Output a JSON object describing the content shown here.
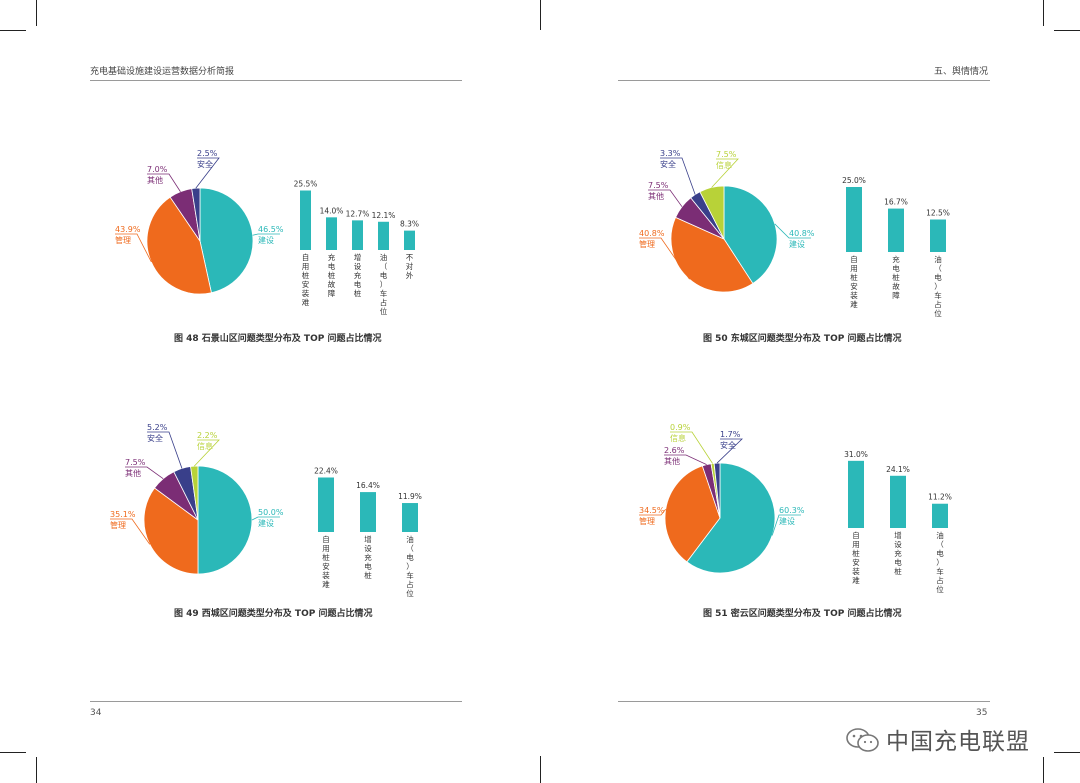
{
  "header": {
    "left_title": "充电基础设施建设运营数据分析简报",
    "right_title": "五、舆情情况"
  },
  "footer": {
    "left_page": "34",
    "right_page": "35"
  },
  "watermark": {
    "text": "中国充电联盟"
  },
  "colors": {
    "建设": "#2bb8b8",
    "管理": "#ef6a1d",
    "其他": "#7b2d75",
    "安全": "#393f8a",
    "信息": "#b8d238",
    "bar": "#2bb8b8"
  },
  "chart_data": [
    {
      "id": "fig48",
      "caption": "图 48  石景山区问题类型分布及 TOP 问题占比情况",
      "pie": {
        "type": "pie",
        "slices": [
          {
            "label": "建设",
            "value": 46.5,
            "value_label": "46.5%"
          },
          {
            "label": "管理",
            "value": 43.9,
            "value_label": "43.9%"
          },
          {
            "label": "其他",
            "value": 7.0,
            "value_label": "7.0%"
          },
          {
            "label": "安全",
            "value": 2.5,
            "value_label": "2.5%"
          }
        ]
      },
      "bar": {
        "type": "bar",
        "ylim": [
          0,
          30
        ],
        "categories": [
          "自用桩安装难",
          "充电桩故障",
          "增设充电桩",
          "油（电）车占位",
          "不对外"
        ],
        "values": [
          25.5,
          14.0,
          12.7,
          12.1,
          8.3
        ],
        "value_labels": [
          "25.5%",
          "14.0%",
          "12.7%",
          "12.1%",
          "8.3%"
        ]
      }
    },
    {
      "id": "fig50",
      "caption": "图 50  东城区问题类型分布及 TOP 问题占比情况",
      "pie": {
        "type": "pie",
        "slices": [
          {
            "label": "建设",
            "value": 40.8,
            "value_label": "40.8%"
          },
          {
            "label": "管理",
            "value": 40.8,
            "value_label": "40.8%"
          },
          {
            "label": "其他",
            "value": 7.5,
            "value_label": "7.5%"
          },
          {
            "label": "安全",
            "value": 3.3,
            "value_label": "3.3%"
          },
          {
            "label": "信息",
            "value": 7.5,
            "value_label": "7.5%"
          }
        ]
      },
      "bar": {
        "type": "bar",
        "ylim": [
          0,
          30
        ],
        "categories": [
          "自用桩安装难",
          "充电桩故障",
          "油（电）车占位"
        ],
        "values": [
          25.0,
          16.7,
          12.5
        ],
        "value_labels": [
          "25.0%",
          "16.7%",
          "12.5%"
        ]
      }
    },
    {
      "id": "fig49",
      "caption": "图 49  西城区问题类型分布及 TOP 问题占比情况",
      "pie": {
        "type": "pie",
        "slices": [
          {
            "label": "建设",
            "value": 50.0,
            "value_label": "50.0%"
          },
          {
            "label": "管理",
            "value": 35.1,
            "value_label": "35.1%"
          },
          {
            "label": "其他",
            "value": 7.5,
            "value_label": "7.5%"
          },
          {
            "label": "安全",
            "value": 5.2,
            "value_label": "5.2%"
          },
          {
            "label": "信息",
            "value": 2.2,
            "value_label": "2.2%"
          }
        ]
      },
      "bar": {
        "type": "bar",
        "ylim": [
          0,
          30
        ],
        "categories": [
          "自用桩安装难",
          "增设充电桩",
          "油（电）车占位"
        ],
        "values": [
          22.4,
          16.4,
          11.9
        ],
        "value_labels": [
          "22.4%",
          "16.4%",
          "11.9%"
        ]
      }
    },
    {
      "id": "fig51",
      "caption": "图 51  密云区问题类型分布及 TOP 问题占比情况",
      "pie": {
        "type": "pie",
        "slices": [
          {
            "label": "建设",
            "value": 60.3,
            "value_label": "60.3%"
          },
          {
            "label": "管理",
            "value": 34.5,
            "value_label": "34.5%"
          },
          {
            "label": "其他",
            "value": 2.6,
            "value_label": "2.6%"
          },
          {
            "label": "信息",
            "value": 0.9,
            "value_label": "0.9%"
          },
          {
            "label": "安全",
            "value": 1.7,
            "value_label": "1.7%"
          }
        ]
      },
      "bar": {
        "type": "bar",
        "ylim": [
          0,
          40
        ],
        "categories": [
          "自用桩安装难",
          "增设充电桩",
          "油（电）车占位"
        ],
        "values": [
          31.0,
          24.1,
          11.2
        ],
        "value_labels": [
          "31.0%",
          "24.1%",
          "11.2%"
        ]
      }
    }
  ]
}
